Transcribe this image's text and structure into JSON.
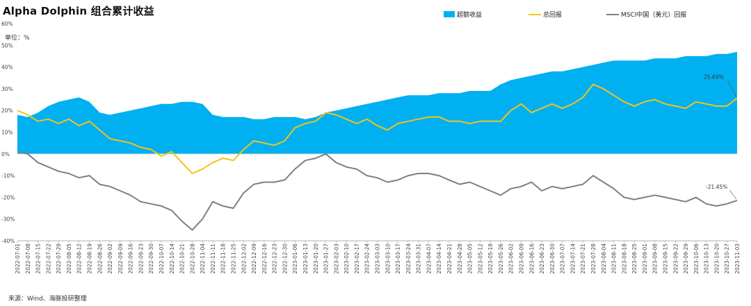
{
  "title": "Alpha Dolphin 组合累计收益",
  "unit_label": "单位：%",
  "source": "来源：Wind、海豚投研整理",
  "legend": [
    {
      "name": "超额收益",
      "color": "#00b0f0",
      "kind": "area"
    },
    {
      "name": "总回报",
      "color": "#f5c31a",
      "kind": "line"
    },
    {
      "name": "MSCI中国（美元）回报",
      "color": "#7f7f7f",
      "kind": "line"
    }
  ],
  "chart_data": {
    "type": "area",
    "title": "Alpha Dolphin 组合累计收益",
    "xlabel": "",
    "ylabel": "单位：%",
    "ylim": [
      -40,
      60
    ],
    "yticks": [
      "60%",
      "50%",
      "40%",
      "30%",
      "20%",
      "10%",
      "0%",
      "-10%",
      "-20%",
      "-30%",
      "-40%"
    ],
    "ytick_values": [
      60,
      50,
      40,
      30,
      20,
      10,
      0,
      -10,
      -20,
      -30,
      -40
    ],
    "x_start": "2022-07-01",
    "x_end": "2023-11-03",
    "x_ticks": [
      "2022-07-01",
      "2022-07-08",
      "2022-07-15",
      "2022-07-22",
      "2022-07-29",
      "2022-08-05",
      "2022-08-12",
      "2022-08-19",
      "2022-08-26",
      "2022-09-02",
      "2022-09-09",
      "2022-09-16",
      "2022-09-23",
      "2022-09-30",
      "2022-10-07",
      "2022-10-14",
      "2022-10-21",
      "2022-10-28",
      "2022-11-04",
      "2022-11-11",
      "2022-11-18",
      "2022-11-25",
      "2022-12-02",
      "2022-12-09",
      "2022-12-16",
      "2022-12-23",
      "2022-12-30",
      "2023-01-06",
      "2023-01-13",
      "2023-01-20",
      "2023-01-27",
      "2023-02-03",
      "2023-02-10",
      "2023-02-17",
      "2023-02-24",
      "2023-03-03",
      "2023-03-10",
      "2023-03-17",
      "2023-03-24",
      "2023-03-31",
      "2023-04-07",
      "2023-04-14",
      "2023-04-21",
      "2023-04-28",
      "2023-05-05",
      "2023-05-12",
      "2023-05-19",
      "2023-05-26",
      "2023-06-02",
      "2023-06-09",
      "2023-06-16",
      "2023-06-23",
      "2023-06-30",
      "2023-07-07",
      "2023-07-14",
      "2023-07-21",
      "2023-07-28",
      "2023-08-04",
      "2023-08-11",
      "2023-08-18",
      "2023-08-25",
      "2023-09-01",
      "2023-09-08",
      "2023-09-15",
      "2023-09-22",
      "2023-09-29",
      "2023-10-06",
      "2023-10-13",
      "2023-10-20",
      "2023-10-27",
      "2023-11-03"
    ],
    "series": [
      {
        "name": "超额收益",
        "color": "#00b0f0",
        "points": [
          [
            "2022-07-01",
            18
          ],
          [
            "2022-07-08",
            17
          ],
          [
            "2022-07-15",
            19
          ],
          [
            "2022-07-22",
            22
          ],
          [
            "2022-07-29",
            24
          ],
          [
            "2022-08-05",
            25
          ],
          [
            "2022-08-12",
            26
          ],
          [
            "2022-08-19",
            24
          ],
          [
            "2022-08-26",
            19
          ],
          [
            "2022-09-02",
            18
          ],
          [
            "2022-09-09",
            19
          ],
          [
            "2022-09-16",
            20
          ],
          [
            "2022-09-23",
            21
          ],
          [
            "2022-09-30",
            22
          ],
          [
            "2022-10-07",
            23
          ],
          [
            "2022-10-14",
            23
          ],
          [
            "2022-10-21",
            24
          ],
          [
            "2022-10-28",
            24
          ],
          [
            "2022-11-04",
            23
          ],
          [
            "2022-11-11",
            18
          ],
          [
            "2022-11-18",
            17
          ],
          [
            "2022-11-25",
            17
          ],
          [
            "2022-12-02",
            17
          ],
          [
            "2022-12-09",
            16
          ],
          [
            "2022-12-16",
            16
          ],
          [
            "2022-12-23",
            17
          ],
          [
            "2022-12-30",
            17
          ],
          [
            "2023-01-06",
            17
          ],
          [
            "2023-01-13",
            16
          ],
          [
            "2023-01-20",
            17
          ],
          [
            "2023-01-27",
            19
          ],
          [
            "2023-02-03",
            20
          ],
          [
            "2023-02-10",
            21
          ],
          [
            "2023-02-17",
            22
          ],
          [
            "2023-02-24",
            23
          ],
          [
            "2023-03-03",
            24
          ],
          [
            "2023-03-10",
            25
          ],
          [
            "2023-03-17",
            26
          ],
          [
            "2023-03-24",
            27
          ],
          [
            "2023-03-31",
            27
          ],
          [
            "2023-04-07",
            27
          ],
          [
            "2023-04-14",
            28
          ],
          [
            "2023-04-21",
            28
          ],
          [
            "2023-04-28",
            28
          ],
          [
            "2023-05-05",
            29
          ],
          [
            "2023-05-12",
            29
          ],
          [
            "2023-05-19",
            29
          ],
          [
            "2023-05-26",
            32
          ],
          [
            "2023-06-02",
            34
          ],
          [
            "2023-06-09",
            35
          ],
          [
            "2023-06-16",
            36
          ],
          [
            "2023-06-23",
            37
          ],
          [
            "2023-06-30",
            38
          ],
          [
            "2023-07-07",
            38
          ],
          [
            "2023-07-14",
            39
          ],
          [
            "2023-07-21",
            40
          ],
          [
            "2023-07-28",
            41
          ],
          [
            "2023-08-04",
            42
          ],
          [
            "2023-08-11",
            43
          ],
          [
            "2023-08-18",
            43
          ],
          [
            "2023-08-25",
            43
          ],
          [
            "2023-09-01",
            43
          ],
          [
            "2023-09-08",
            44
          ],
          [
            "2023-09-15",
            44
          ],
          [
            "2023-09-22",
            44
          ],
          [
            "2023-09-29",
            45
          ],
          [
            "2023-10-06",
            45
          ],
          [
            "2023-10-13",
            45
          ],
          [
            "2023-10-20",
            46
          ],
          [
            "2023-10-27",
            46
          ],
          [
            "2023-11-03",
            47
          ]
        ]
      },
      {
        "name": "总回报",
        "color": "#f5c31a",
        "points": [
          [
            "2022-07-01",
            20
          ],
          [
            "2022-07-08",
            18
          ],
          [
            "2022-07-15",
            15
          ],
          [
            "2022-07-22",
            16
          ],
          [
            "2022-07-29",
            14
          ],
          [
            "2022-08-05",
            16
          ],
          [
            "2022-08-12",
            13
          ],
          [
            "2022-08-19",
            15
          ],
          [
            "2022-08-26",
            11
          ],
          [
            "2022-09-02",
            7
          ],
          [
            "2022-09-09",
            6
          ],
          [
            "2022-09-16",
            5
          ],
          [
            "2022-09-23",
            3
          ],
          [
            "2022-09-30",
            2
          ],
          [
            "2022-10-07",
            -1
          ],
          [
            "2022-10-14",
            1
          ],
          [
            "2022-10-21",
            -4
          ],
          [
            "2022-10-28",
            -9
          ],
          [
            "2022-11-04",
            -7
          ],
          [
            "2022-11-11",
            -4
          ],
          [
            "2022-11-18",
            -2
          ],
          [
            "2022-11-25",
            -3
          ],
          [
            "2022-12-02",
            2
          ],
          [
            "2022-12-09",
            6
          ],
          [
            "2022-12-16",
            5
          ],
          [
            "2022-12-23",
            4
          ],
          [
            "2022-12-30",
            6
          ],
          [
            "2023-01-06",
            12
          ],
          [
            "2023-01-13",
            14
          ],
          [
            "2023-01-20",
            15
          ],
          [
            "2023-01-27",
            19
          ],
          [
            "2023-02-03",
            18
          ],
          [
            "2023-02-10",
            16
          ],
          [
            "2023-02-17",
            14
          ],
          [
            "2023-02-24",
            16
          ],
          [
            "2023-03-03",
            13
          ],
          [
            "2023-03-10",
            11
          ],
          [
            "2023-03-17",
            14
          ],
          [
            "2023-03-24",
            15
          ],
          [
            "2023-03-31",
            16
          ],
          [
            "2023-04-07",
            17
          ],
          [
            "2023-04-14",
            17
          ],
          [
            "2023-04-21",
            15
          ],
          [
            "2023-04-28",
            15
          ],
          [
            "2023-05-05",
            14
          ],
          [
            "2023-05-12",
            15
          ],
          [
            "2023-05-19",
            15
          ],
          [
            "2023-05-26",
            15
          ],
          [
            "2023-06-02",
            20
          ],
          [
            "2023-06-09",
            23
          ],
          [
            "2023-06-16",
            19
          ],
          [
            "2023-06-23",
            21
          ],
          [
            "2023-06-30",
            23
          ],
          [
            "2023-07-07",
            21
          ],
          [
            "2023-07-14",
            23
          ],
          [
            "2023-07-21",
            26
          ],
          [
            "2023-07-28",
            32
          ],
          [
            "2023-08-04",
            30
          ],
          [
            "2023-08-11",
            27
          ],
          [
            "2023-08-18",
            24
          ],
          [
            "2023-08-25",
            22
          ],
          [
            "2023-09-01",
            24
          ],
          [
            "2023-09-08",
            25
          ],
          [
            "2023-09-15",
            23
          ],
          [
            "2023-09-22",
            22
          ],
          [
            "2023-09-29",
            21
          ],
          [
            "2023-10-06",
            24
          ],
          [
            "2023-10-13",
            23
          ],
          [
            "2023-10-20",
            22
          ],
          [
            "2023-10-27",
            22
          ],
          [
            "2023-11-03",
            25.69
          ]
        ]
      },
      {
        "name": "MSCI中国（美元）回报",
        "color": "#7f7f7f",
        "points": [
          [
            "2022-07-01",
            1
          ],
          [
            "2022-07-08",
            0
          ],
          [
            "2022-07-15",
            -4
          ],
          [
            "2022-07-22",
            -6
          ],
          [
            "2022-07-29",
            -8
          ],
          [
            "2022-08-05",
            -9
          ],
          [
            "2022-08-12",
            -11
          ],
          [
            "2022-08-19",
            -10
          ],
          [
            "2022-08-26",
            -14
          ],
          [
            "2022-09-02",
            -15
          ],
          [
            "2022-09-09",
            -17
          ],
          [
            "2022-09-16",
            -19
          ],
          [
            "2022-09-23",
            -22
          ],
          [
            "2022-09-30",
            -23
          ],
          [
            "2022-10-07",
            -24
          ],
          [
            "2022-10-14",
            -26
          ],
          [
            "2022-10-21",
            -31
          ],
          [
            "2022-10-28",
            -35
          ],
          [
            "2022-11-04",
            -30
          ],
          [
            "2022-11-11",
            -22
          ],
          [
            "2022-11-18",
            -24
          ],
          [
            "2022-11-25",
            -25
          ],
          [
            "2022-12-02",
            -18
          ],
          [
            "2022-12-09",
            -14
          ],
          [
            "2022-12-16",
            -13
          ],
          [
            "2022-12-23",
            -13
          ],
          [
            "2022-12-30",
            -12
          ],
          [
            "2023-01-06",
            -7
          ],
          [
            "2023-01-13",
            -3
          ],
          [
            "2023-01-20",
            -2
          ],
          [
            "2023-01-27",
            0
          ],
          [
            "2023-02-03",
            -4
          ],
          [
            "2023-02-10",
            -6
          ],
          [
            "2023-02-17",
            -7
          ],
          [
            "2023-02-24",
            -10
          ],
          [
            "2023-03-03",
            -11
          ],
          [
            "2023-03-10",
            -13
          ],
          [
            "2023-03-17",
            -12
          ],
          [
            "2023-03-24",
            -10
          ],
          [
            "2023-03-31",
            -9
          ],
          [
            "2023-04-07",
            -9
          ],
          [
            "2023-04-14",
            -10
          ],
          [
            "2023-04-21",
            -12
          ],
          [
            "2023-04-28",
            -14
          ],
          [
            "2023-05-05",
            -13
          ],
          [
            "2023-05-12",
            -15
          ],
          [
            "2023-05-19",
            -17
          ],
          [
            "2023-05-26",
            -19
          ],
          [
            "2023-06-02",
            -16
          ],
          [
            "2023-06-09",
            -15
          ],
          [
            "2023-06-16",
            -13
          ],
          [
            "2023-06-23",
            -17
          ],
          [
            "2023-06-30",
            -15
          ],
          [
            "2023-07-07",
            -16
          ],
          [
            "2023-07-14",
            -15
          ],
          [
            "2023-07-21",
            -14
          ],
          [
            "2023-07-28",
            -10
          ],
          [
            "2023-08-04",
            -13
          ],
          [
            "2023-08-11",
            -16
          ],
          [
            "2023-08-18",
            -20
          ],
          [
            "2023-08-25",
            -21
          ],
          [
            "2023-09-01",
            -20
          ],
          [
            "2023-09-08",
            -19
          ],
          [
            "2023-09-15",
            -20
          ],
          [
            "2023-09-22",
            -21
          ],
          [
            "2023-09-29",
            -22
          ],
          [
            "2023-10-06",
            -20
          ],
          [
            "2023-10-13",
            -23
          ],
          [
            "2023-10-20",
            -24
          ],
          [
            "2023-10-27",
            -23
          ],
          [
            "2023-11-03",
            -21.45
          ]
        ]
      }
    ],
    "annotations": [
      {
        "series": "总回报",
        "x": "2023-11-03",
        "text": "25.69%"
      },
      {
        "series": "MSCI中国（美元）回报",
        "x": "2023-11-03",
        "text": "-21.45%"
      }
    ],
    "grid": false,
    "legend_position": "top-right"
  }
}
